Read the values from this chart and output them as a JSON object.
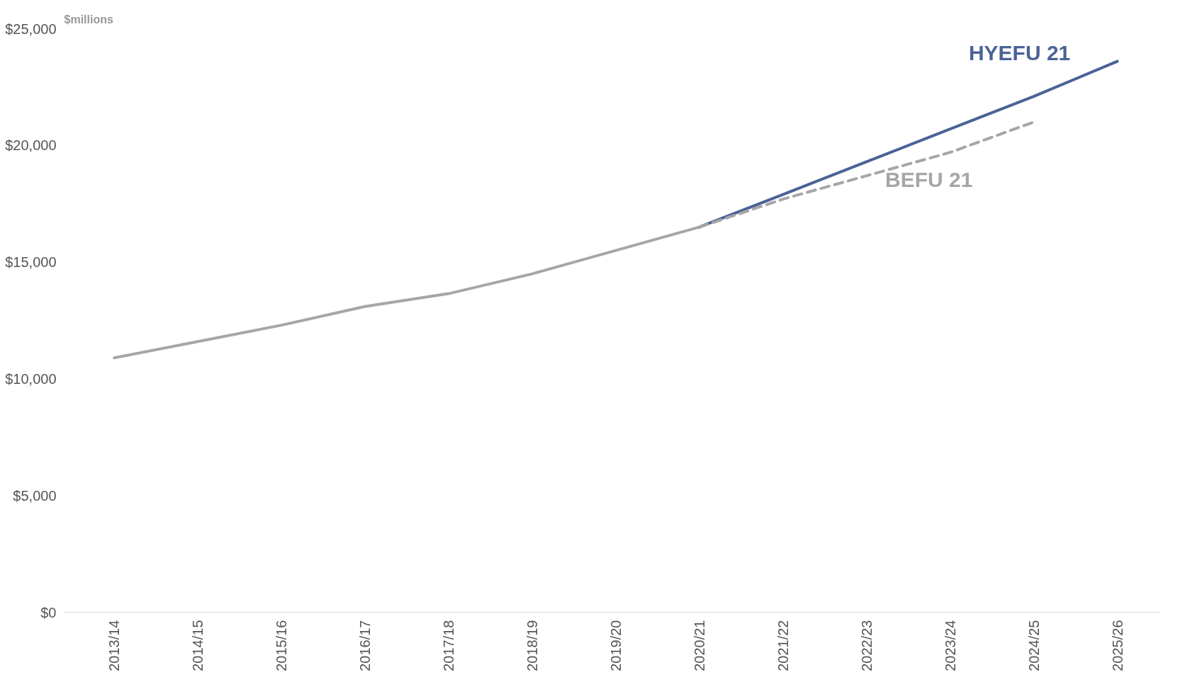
{
  "chart_data": {
    "type": "line",
    "ylabel": "$millions",
    "categories": [
      "2013/14",
      "2014/15",
      "2015/16",
      "2016/17",
      "2017/18",
      "2018/19",
      "2019/20",
      "2020/21",
      "2021/22",
      "2022/23",
      "2023/24",
      "2024/25",
      "2025/26"
    ],
    "series": [
      {
        "color": "#a6a6a6",
        "line_style": "solid",
        "values": [
          10900,
          11600,
          12300,
          13100,
          13650,
          14500,
          15500,
          16500,
          null,
          null,
          null,
          null,
          null
        ]
      },
      {
        "name": "HYEFU 21",
        "color": "#4a6296",
        "line_style": "solid",
        "values": [
          null,
          null,
          null,
          null,
          null,
          null,
          null,
          16500,
          17900,
          19300,
          20700,
          22100,
          23600
        ]
      },
      {
        "name": "BEFU 21",
        "color": "#a6a6a6",
        "line_style": "dashed",
        "values": [
          null,
          null,
          null,
          null,
          null,
          null,
          null,
          16500,
          17700,
          18700,
          19700,
          21000,
          null
        ]
      }
    ],
    "ylim": [
      0,
      25000
    ],
    "yticks": [
      {
        "value": 0,
        "label": "$0"
      },
      {
        "value": 5000,
        "label": "$5,000"
      },
      {
        "value": 10000,
        "label": "$10,000"
      },
      {
        "value": 15000,
        "label": "$15,000"
      },
      {
        "value": 20000,
        "label": "$20,000"
      },
      {
        "value": 25000,
        "label": "$25,000"
      }
    ],
    "grid": false
  }
}
